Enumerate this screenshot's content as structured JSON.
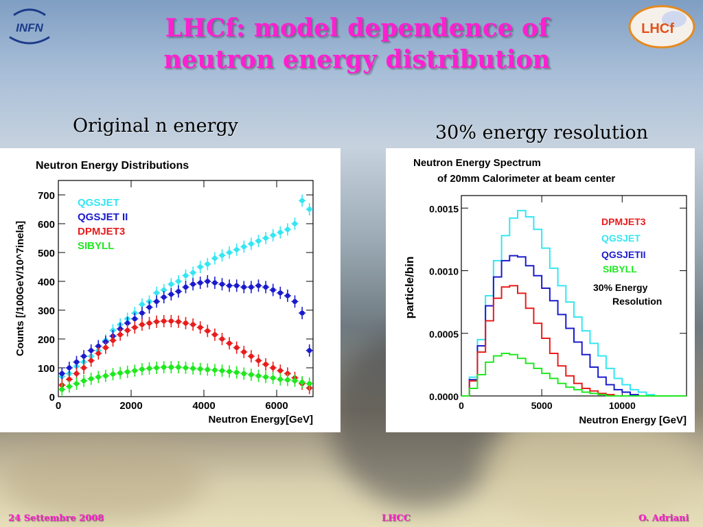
{
  "slide": {
    "title_line1": "LHCf: model dependence of",
    "title_line2": "neutron energy distribution",
    "subtitle_left": "Original n energy",
    "subtitle_right": "30% energy resolution",
    "logo_left_text": "INFN",
    "logo_right_text": "LHCf",
    "footer_left": "24 Settembre 2008",
    "footer_center": "LHCC",
    "footer_right": "O. Adriani"
  },
  "chart_data": [
    {
      "type": "scatter",
      "title": "Neutron Energy Distributions",
      "xlabel": "Neutron Energy[GeV]",
      "ylabel": "Counts [/100GeV/10^7inela]",
      "xlim": [
        0,
        7000
      ],
      "ylim": [
        0,
        750
      ],
      "xticks": [
        "0",
        "2000",
        "4000",
        "6000"
      ],
      "yticks": [
        "0",
        "100",
        "200",
        "300",
        "400",
        "500",
        "600",
        "700"
      ],
      "legend_placement": "top-left",
      "x": [
        100,
        300,
        500,
        700,
        900,
        1100,
        1300,
        1500,
        1700,
        1900,
        2100,
        2300,
        2500,
        2700,
        2900,
        3100,
        3300,
        3500,
        3700,
        3900,
        4100,
        4300,
        4500,
        4700,
        4900,
        5100,
        5300,
        5500,
        5700,
        5900,
        6100,
        6300,
        6500,
        6700,
        6900
      ],
      "series": [
        {
          "name": "QGSJET",
          "color": "#33e6f2",
          "values": [
            70,
            80,
            105,
            120,
            140,
            160,
            195,
            230,
            250,
            270,
            290,
            320,
            330,
            360,
            370,
            390,
            400,
            420,
            430,
            450,
            460,
            480,
            490,
            500,
            510,
            520,
            530,
            540,
            550,
            560,
            570,
            580,
            600,
            680,
            650
          ]
        },
        {
          "name": "QGSJET II",
          "color": "#1a1acc",
          "values": [
            80,
            100,
            120,
            140,
            160,
            175,
            190,
            210,
            235,
            255,
            270,
            290,
            310,
            330,
            345,
            355,
            365,
            380,
            390,
            395,
            400,
            395,
            390,
            385,
            385,
            380,
            380,
            385,
            380,
            370,
            360,
            350,
            330,
            290,
            160
          ]
        },
        {
          "name": "DPMJET3",
          "color": "#e81c1c",
          "values": [
            40,
            60,
            80,
            100,
            125,
            150,
            170,
            195,
            215,
            230,
            240,
            250,
            255,
            260,
            262,
            262,
            260,
            255,
            250,
            240,
            228,
            215,
            200,
            185,
            170,
            155,
            140,
            125,
            112,
            100,
            90,
            80,
            65,
            45,
            30
          ]
        },
        {
          "name": "SIBYLL",
          "color": "#1ee81e",
          "values": [
            25,
            35,
            45,
            55,
            62,
            68,
            72,
            78,
            82,
            86,
            90,
            95,
            98,
            100,
            102,
            102,
            102,
            100,
            98,
            96,
            94,
            92,
            90,
            87,
            84,
            80,
            76,
            72,
            68,
            65,
            60,
            58,
            55,
            50,
            45
          ]
        }
      ]
    },
    {
      "type": "line",
      "title": "Neutron Energy Spectrum",
      "subtitle": "of 20mm Calorimeter at beam center",
      "xlabel": "Neutron Energy [GeV]",
      "ylabel": "particle/bin",
      "xlim": [
        0,
        14000
      ],
      "ylim": [
        0,
        0.0016
      ],
      "xticks": [
        "0",
        "5000",
        "10000"
      ],
      "yticks": [
        "0.0000",
        "0.0005",
        "0.0010",
        "0.0015"
      ],
      "legend_placement": "top-right",
      "annotation": [
        "30% Energy",
        "Resolution"
      ],
      "x": [
        0,
        500,
        1000,
        1500,
        2000,
        2500,
        3000,
        3500,
        4000,
        4500,
        5000,
        5500,
        6000,
        6500,
        7000,
        7500,
        8000,
        8500,
        9000,
        9500,
        10000,
        10500,
        11000,
        11500,
        12000,
        12500,
        13000,
        13500,
        14000
      ],
      "series": [
        {
          "name": "DPMJET3",
          "color": "#e81c1c",
          "values": [
            0,
            0.00012,
            0.00035,
            0.0006,
            0.00078,
            0.00087,
            0.00088,
            0.00082,
            0.0007,
            0.00058,
            0.00046,
            0.00034,
            0.00024,
            0.00016,
            0.0001,
            6e-05,
            4e-05,
            2e-05,
            1e-05,
            0,
            0,
            0,
            0,
            0,
            0,
            0,
            0,
            0,
            0
          ]
        },
        {
          "name": "QGSJET",
          "color": "#33e6f2",
          "values": [
            0,
            0.00015,
            0.00045,
            0.0008,
            0.00108,
            0.00128,
            0.00142,
            0.00148,
            0.00143,
            0.00133,
            0.00118,
            0.00102,
            0.00088,
            0.00075,
            0.00063,
            0.00052,
            0.00042,
            0.00032,
            0.00022,
            0.00014,
            9e-05,
            5e-05,
            3e-05,
            1e-05,
            0,
            0,
            0,
            0,
            0
          ]
        },
        {
          "name": "QGSJETII",
          "color": "#1a1acc",
          "values": [
            0,
            0.00013,
            0.0004,
            0.00072,
            0.00095,
            0.00108,
            0.00112,
            0.00111,
            0.00104,
            0.00096,
            0.00086,
            0.00076,
            0.00065,
            0.00054,
            0.00043,
            0.00033,
            0.00023,
            0.00015,
            9e-05,
            5e-05,
            3e-05,
            1e-05,
            0,
            0,
            0,
            0,
            0,
            0,
            0
          ]
        },
        {
          "name": "SIBYLL",
          "color": "#1ee81e",
          "values": [
            0,
            6e-05,
            0.00017,
            0.00027,
            0.00032,
            0.00034,
            0.00033,
            0.0003,
            0.00026,
            0.00022,
            0.00018,
            0.00014,
            0.0001,
            7e-05,
            5e-05,
            3e-05,
            2e-05,
            1e-05,
            0,
            0,
            0,
            0,
            0,
            0,
            0,
            0,
            0,
            0,
            0
          ]
        }
      ]
    }
  ]
}
